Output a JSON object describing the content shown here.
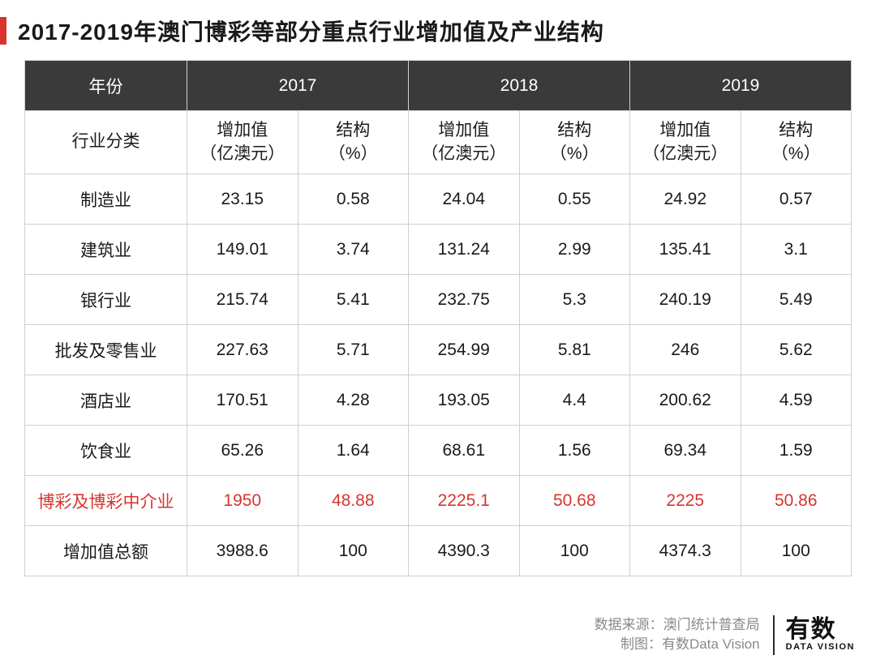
{
  "title": "2017-2019年澳门博彩等部分重点行业增加值及产业结构",
  "accent_color": "#d7342f",
  "header_bg": "#3a3a3a",
  "header_fg": "#ffffff",
  "border_color": "#cfcfcf",
  "highlight_color": "#d7342f",
  "table": {
    "year_label": "年份",
    "years": [
      "2017",
      "2018",
      "2019"
    ],
    "category_label": "行业分类",
    "value_header": "增加值\n（亿澳元）",
    "struct_header": "结构\n（%）",
    "rows": [
      {
        "label": "制造业",
        "cells": [
          "23.15",
          "0.58",
          "24.04",
          "0.55",
          "24.92",
          "0.57"
        ],
        "highlight": false
      },
      {
        "label": "建筑业",
        "cells": [
          "149.01",
          "3.74",
          "131.24",
          "2.99",
          "135.41",
          "3.1"
        ],
        "highlight": false
      },
      {
        "label": "银行业",
        "cells": [
          "215.74",
          "5.41",
          "232.75",
          "5.3",
          "240.19",
          "5.49"
        ],
        "highlight": false
      },
      {
        "label": "批发及零售业",
        "cells": [
          "227.63",
          "5.71",
          "254.99",
          "5.81",
          "246",
          "5.62"
        ],
        "highlight": false
      },
      {
        "label": "酒店业",
        "cells": [
          "170.51",
          "4.28",
          "193.05",
          "4.4",
          "200.62",
          "4.59"
        ],
        "highlight": false
      },
      {
        "label": "饮食业",
        "cells": [
          "65.26",
          "1.64",
          "68.61",
          "1.56",
          "69.34",
          "1.59"
        ],
        "highlight": false
      },
      {
        "label": "博彩及博彩中介业",
        "cells": [
          "1950",
          "48.88",
          "2225.1",
          "50.68",
          "2225",
          "50.86"
        ],
        "highlight": true
      },
      {
        "label": "增加值总额",
        "cells": [
          "3988.6",
          "100",
          "4390.3",
          "100",
          "4374.3",
          "100"
        ],
        "highlight": false
      }
    ]
  },
  "footer": {
    "source_label": "数据来源：",
    "source_value": "澳门统计普查局",
    "chart_label": "制图：",
    "chart_value": "有数Data Vision",
    "logo_main": "有数",
    "logo_sub": "DATA VISION"
  }
}
